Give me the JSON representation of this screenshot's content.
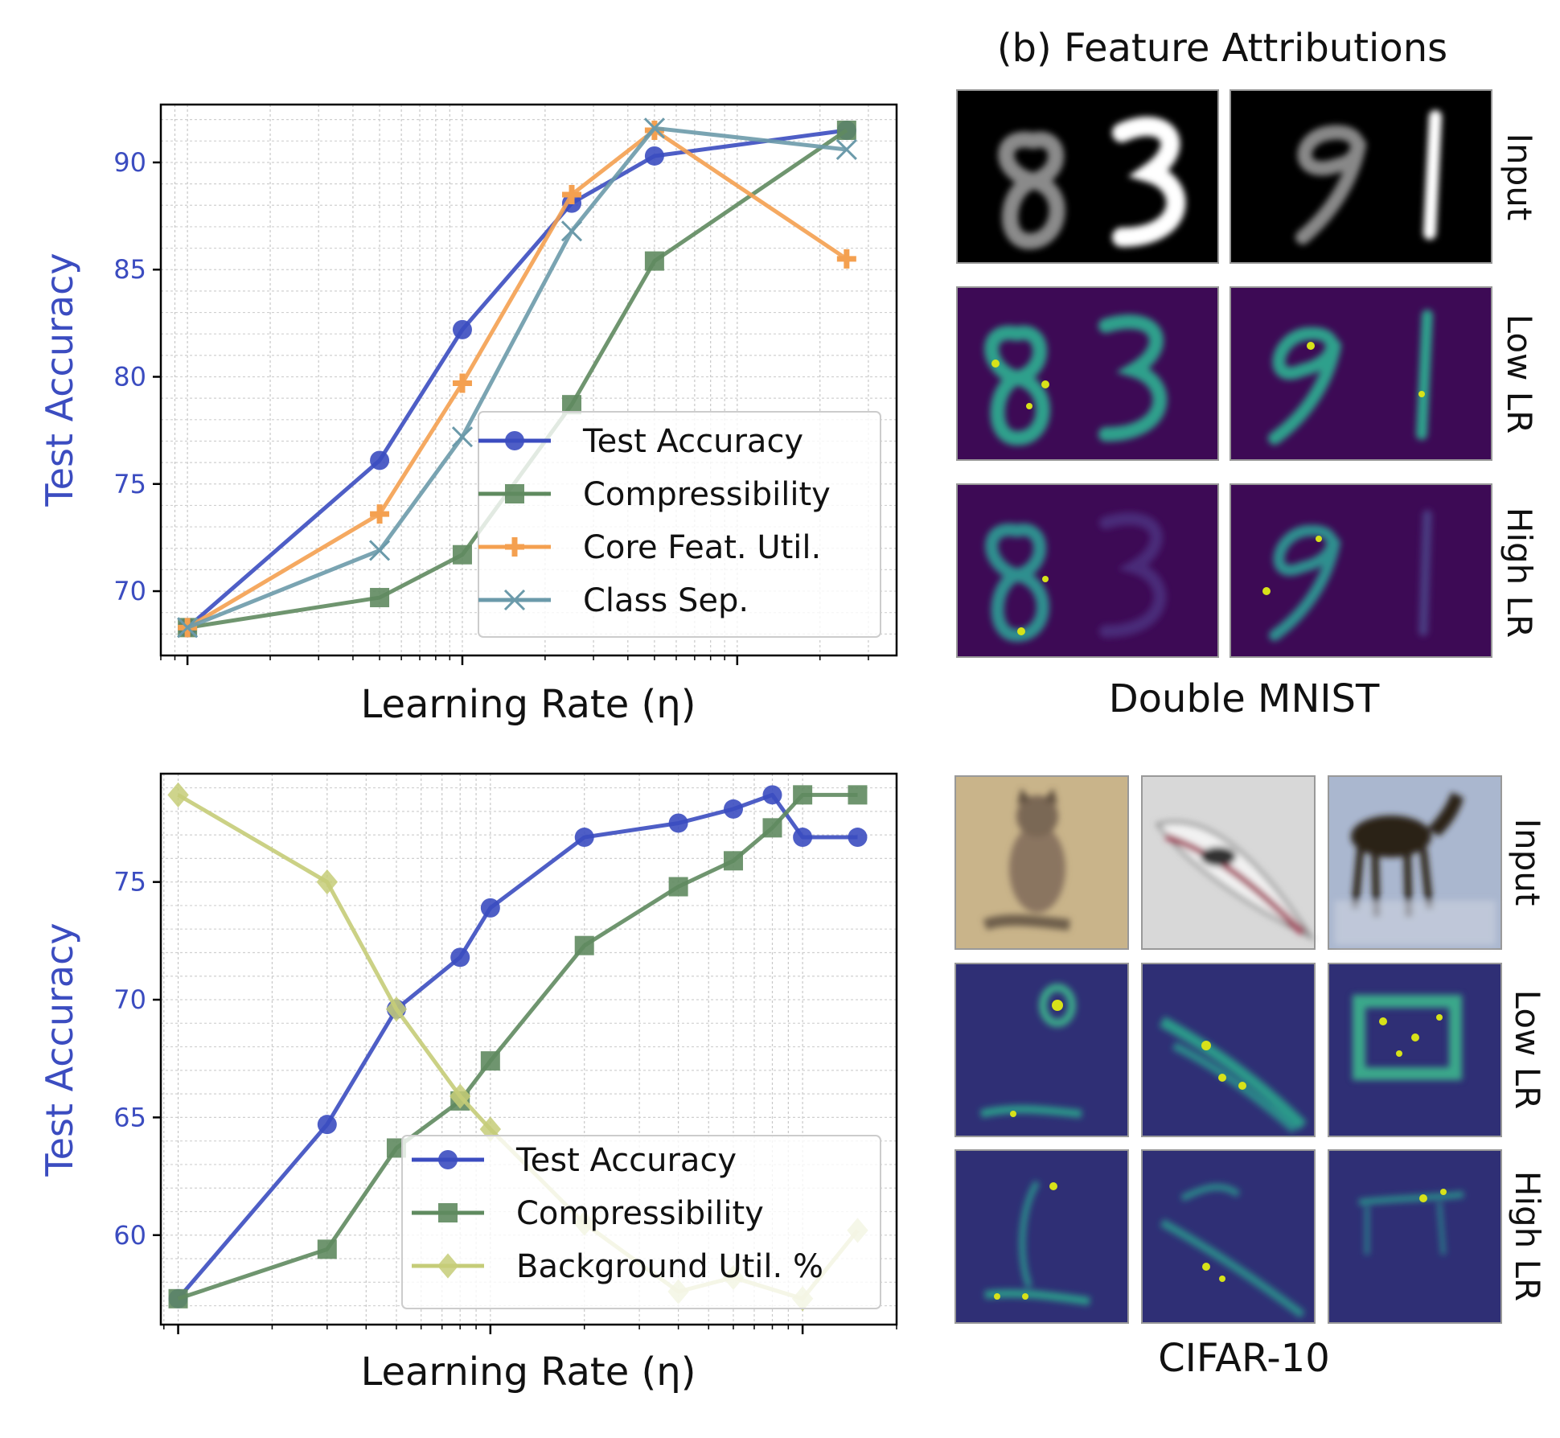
{
  "chart_data": [
    {
      "type": "line",
      "ylabel": "Test Accuracy",
      "xlabel": "Learning Rate (η)",
      "xscale": "log",
      "ylim": [
        67,
        92.7
      ],
      "yticks": [
        70,
        75,
        80,
        85,
        90
      ],
      "grid": true,
      "legend_position": "lower-right",
      "series": [
        {
          "name": "Test Accuracy",
          "color": "#3b4cc0",
          "marker": "circle",
          "x": [
            0.0001,
            0.0005,
            0.001,
            0.0025,
            0.005,
            0.025
          ],
          "values": [
            68.3,
            76.1,
            82.2,
            88.1,
            90.3,
            91.5
          ]
        },
        {
          "name": "Compressibility",
          "color": "#5f8a5f",
          "marker": "square",
          "x": [
            0.0001,
            0.0005,
            0.001,
            0.0025,
            0.005,
            0.025
          ],
          "values": [
            68.3,
            69.7,
            71.7,
            78.7,
            85.4,
            91.5
          ]
        },
        {
          "name": "Core Feat. Util.",
          "color": "#f4a050",
          "marker": "plus",
          "x": [
            0.0001,
            0.0005,
            0.001,
            0.0025,
            0.005,
            0.025
          ],
          "values": [
            68.3,
            73.6,
            79.7,
            88.5,
            91.5,
            85.5
          ]
        },
        {
          "name": "Class Sep.",
          "color": "#6b9aaa",
          "marker": "x",
          "x": [
            0.0001,
            0.0005,
            0.001,
            0.0025,
            0.005,
            0.025
          ],
          "values": [
            68.3,
            71.9,
            77.2,
            86.8,
            91.6,
            90.6
          ]
        }
      ]
    },
    {
      "type": "line",
      "ylabel": "Test Accuracy",
      "xlabel": "Learning Rate (η)",
      "xscale": "log",
      "ylim": [
        56.2,
        79.6
      ],
      "yticks": [
        60,
        65,
        70,
        75
      ],
      "grid": true,
      "legend_position": "lower-right",
      "series": [
        {
          "name": "Test Accuracy",
          "color": "#3b4cc0",
          "marker": "circle",
          "x": [
            0.0001,
            0.0003,
            0.0005,
            0.0008,
            0.001,
            0.002,
            0.004,
            0.006,
            0.008,
            0.01,
            0.015
          ],
          "values": [
            57.3,
            64.7,
            69.6,
            71.8,
            73.9,
            76.9,
            77.5,
            78.1,
            78.7,
            76.9,
            76.9
          ]
        },
        {
          "name": "Compressibility",
          "color": "#5f8a5f",
          "marker": "square",
          "x": [
            0.0001,
            0.0003,
            0.0005,
            0.0008,
            0.001,
            0.002,
            0.004,
            0.006,
            0.008,
            0.01,
            0.015
          ],
          "values": [
            57.3,
            59.4,
            63.7,
            65.7,
            67.4,
            72.3,
            74.8,
            75.9,
            77.3,
            78.7,
            78.7
          ]
        },
        {
          "name": "Background Util. %",
          "color": "#c5cc78",
          "marker": "diamond",
          "x": [
            0.0001,
            0.0003,
            0.0005,
            0.0008,
            0.001,
            0.002,
            0.004,
            0.006,
            0.01,
            0.015
          ],
          "values": [
            78.7,
            75.0,
            69.6,
            65.9,
            64.5,
            60.5,
            57.6,
            58.2,
            57.3,
            60.2
          ]
        }
      ]
    }
  ],
  "panel_b": {
    "title": "(b) Feature Attributions",
    "mnist_label": "Double MNIST",
    "cifar_label": "CIFAR-10",
    "row_labels": [
      "Input",
      "Low LR",
      "High LR"
    ],
    "colors": {
      "mnist_bg": "#000000",
      "attr_bg": "#3d0a55",
      "cifar_attr_bg": "#2f2f75"
    }
  }
}
